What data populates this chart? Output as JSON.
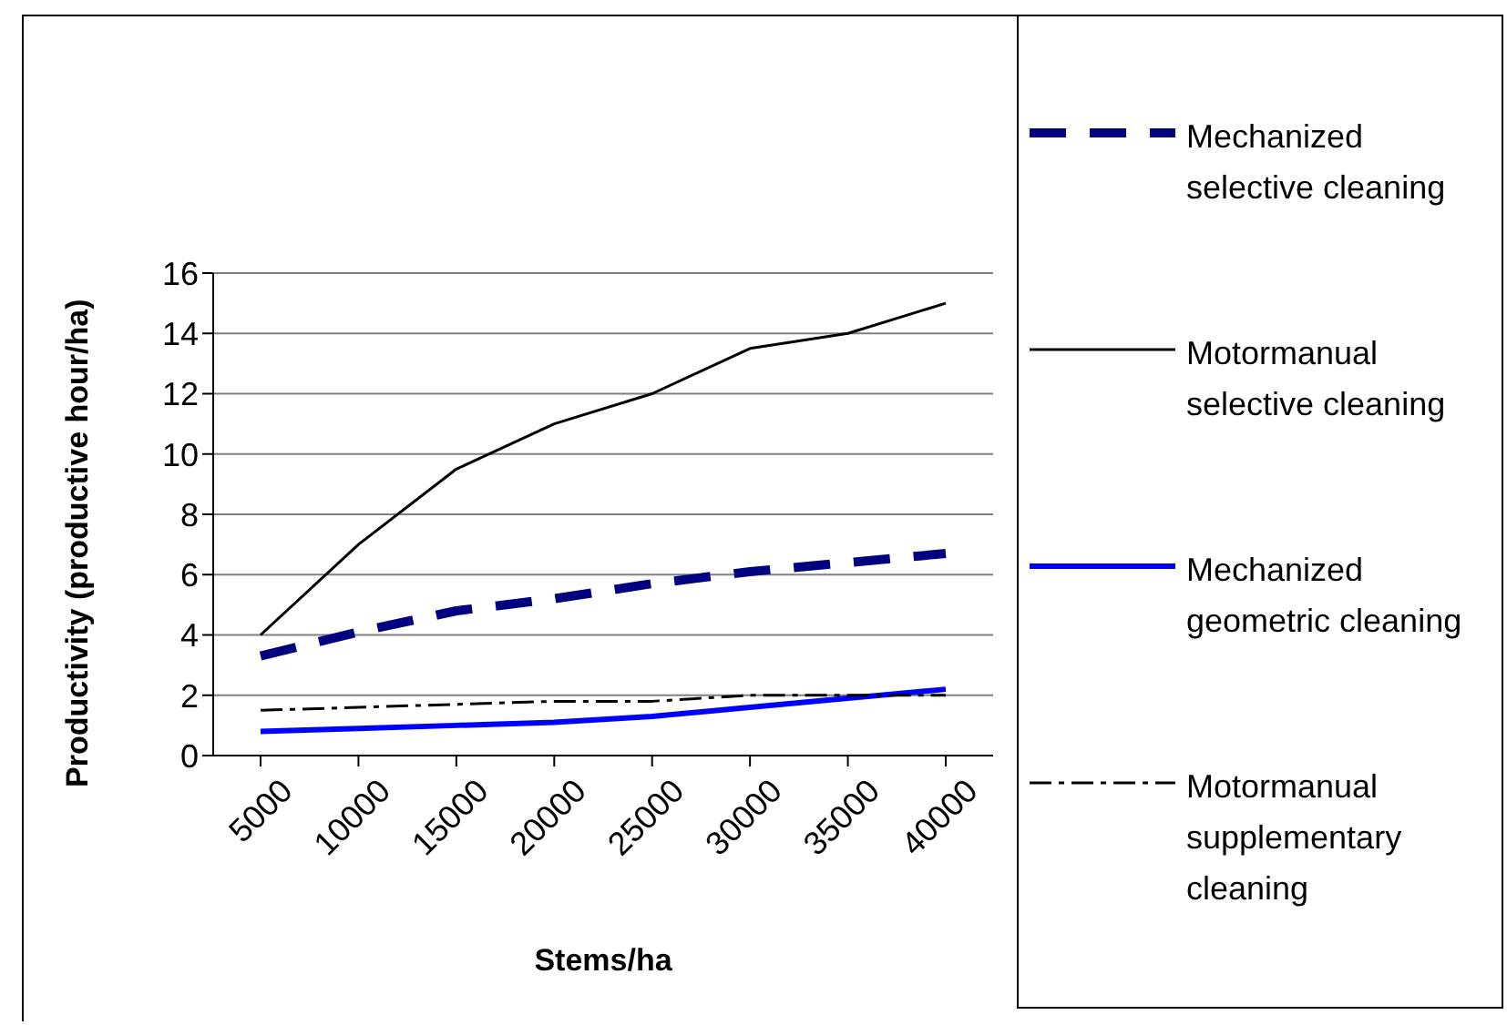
{
  "chart_data": {
    "type": "line",
    "xlabel": "Stems/ha",
    "ylabel": "Productivity (productive hour/ha)",
    "categories": [
      "5000",
      "10000",
      "15000",
      "20000",
      "25000",
      "30000",
      "35000",
      "40000"
    ],
    "series": [
      {
        "name": "Mechanized selective cleaning",
        "color": "#000080",
        "line_style": "dashed",
        "values": [
          3.3,
          4.1,
          4.8,
          5.2,
          5.7,
          6.1,
          6.4,
          6.7
        ]
      },
      {
        "name": "Motormanual selective cleaning",
        "color": "#000000",
        "line_style": "solid",
        "values": [
          4,
          7,
          9.5,
          11,
          12,
          13.5,
          14,
          15
        ]
      },
      {
        "name": "Mechanized geometric cleaning",
        "color": "#0000ff",
        "line_style": "solid",
        "values": [
          0.8,
          0.9,
          1.0,
          1.1,
          1.3,
          1.6,
          1.9,
          2.2
        ]
      },
      {
        "name": "Motormanual supplementary cleaning",
        "color": "#000000",
        "line_style": "dashed",
        "values": [
          1.5,
          1.6,
          1.7,
          1.8,
          1.8,
          2.0,
          2.0,
          2.0
        ]
      }
    ],
    "ylim": [
      0,
      16
    ],
    "yticks": [
      0,
      2,
      4,
      6,
      8,
      10,
      12,
      14,
      16
    ],
    "grid": "y",
    "legend": "right",
    "marker": "none"
  }
}
